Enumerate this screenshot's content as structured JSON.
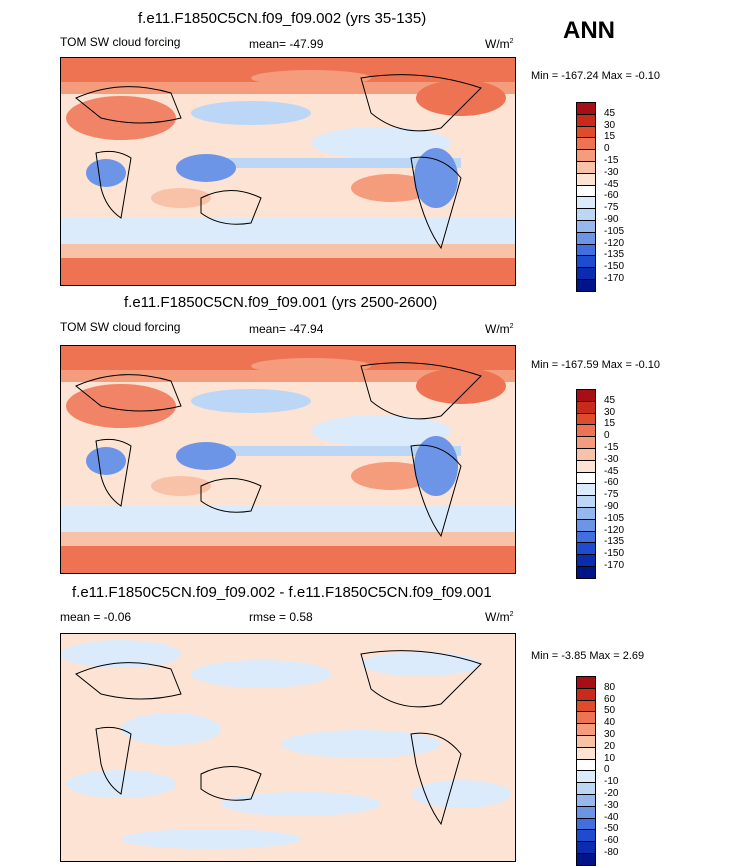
{
  "season": "ANN",
  "panels": [
    {
      "title": "f.e11.F1850C5CN.f09_f09.002 (yrs 35-135)",
      "left_label": "TOM SW cloud forcing",
      "mid_label": "mean= -47.99",
      "units": "W/m",
      "units_exp": "2",
      "minmax": "Min = -167.24 Max =  -0.10"
    },
    {
      "title": "f.e11.F1850C5CN.f09_f09.001 (yrs 2500-2600)",
      "left_label": "TOM SW cloud forcing",
      "mid_label": "mean= -47.94",
      "units": "W/m",
      "units_exp": "2",
      "minmax": "Min = -167.59 Max =  -0.10"
    },
    {
      "title": "f.e11.F1850C5CN.f09_f09.002 - f.e11.F1850C5CN.f09_f09.001",
      "left_label": "mean =  -0.06",
      "mid_label": "rmse =   0.58",
      "units": "W/m",
      "units_exp": "2",
      "minmax": "Min =  -3.85 Max =   2.69"
    }
  ],
  "chart_data": [
    {
      "type": "heatmap",
      "title": "f.e11.F1850C5CN.f09_f09.002 (yrs 35-135)",
      "variable": "TOM SW cloud forcing",
      "mean": -47.99,
      "min": -167.24,
      "max": -0.1,
      "units": "W/m2",
      "colorbar_levels": [
        "45",
        "30",
        "15",
        "0",
        "-15",
        "-30",
        "-45",
        "-60",
        "-75",
        "-90",
        "-105",
        "-120",
        "-135",
        "-150",
        "-170"
      ],
      "colorbar_colors": [
        "#a50f15",
        "#c92a1b",
        "#e04b2c",
        "#ee7352",
        "#f49c7c",
        "#f8c2a9",
        "#fde3d3",
        "#ffffff",
        "#dcebfb",
        "#bcd7f5",
        "#96b8ef",
        "#6c95e8",
        "#416fe0",
        "#1f4bd1",
        "#0b2cae",
        "#001489"
      ]
    },
    {
      "type": "heatmap",
      "title": "f.e11.F1850C5CN.f09_f09.001 (yrs 2500-2600)",
      "variable": "TOM SW cloud forcing",
      "mean": -47.94,
      "min": -167.59,
      "max": -0.1,
      "units": "W/m2",
      "colorbar_levels": [
        "45",
        "30",
        "15",
        "0",
        "-15",
        "-30",
        "-45",
        "-60",
        "-75",
        "-90",
        "-105",
        "-120",
        "-135",
        "-150",
        "-170"
      ],
      "colorbar_colors": [
        "#a50f15",
        "#c92a1b",
        "#e04b2c",
        "#ee7352",
        "#f49c7c",
        "#f8c2a9",
        "#fde3d3",
        "#ffffff",
        "#dcebfb",
        "#bcd7f5",
        "#96b8ef",
        "#6c95e8",
        "#416fe0",
        "#1f4bd1",
        "#0b2cae",
        "#001489"
      ]
    },
    {
      "type": "heatmap",
      "title": "f.e11.F1850C5CN.f09_f09.002 - f.e11.F1850C5CN.f09_f09.001",
      "mean": -0.06,
      "rmse": 0.58,
      "min": -3.85,
      "max": 2.69,
      "units": "W/m2",
      "colorbar_levels": [
        "80",
        "60",
        "50",
        "40",
        "30",
        "20",
        "10",
        "0",
        "-10",
        "-20",
        "-30",
        "-40",
        "-50",
        "-60",
        "-80"
      ],
      "colorbar_colors": [
        "#a50f15",
        "#c92a1b",
        "#e04b2c",
        "#ee7352",
        "#f49c7c",
        "#f8c2a9",
        "#fde3d3",
        "#ffffff",
        "#dcebfb",
        "#bcd7f5",
        "#96b8ef",
        "#6c95e8",
        "#416fe0",
        "#1f4bd1",
        "#0b2cae",
        "#001489"
      ]
    }
  ]
}
